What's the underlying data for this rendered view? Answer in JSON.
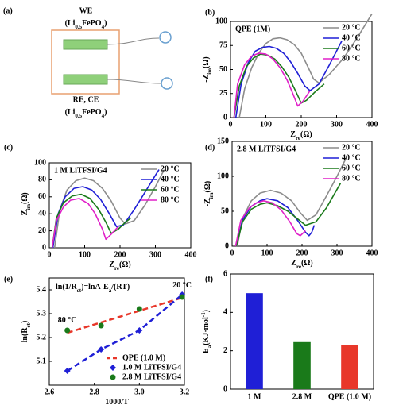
{
  "diagram": {
    "panel_label": "(a)",
    "we": {
      "title": "WE",
      "formula": [
        "(Li",
        {
          "sub": "0.5"
        },
        "FePO",
        {
          "sub": "4"
        },
        ")"
      ]
    },
    "re": {
      "title": "RE, CE",
      "formula": [
        "(Li",
        {
          "sub": "0.5"
        },
        "FePO",
        {
          "sub": "4"
        },
        ")"
      ]
    }
  },
  "chart_data": [
    {
      "type": "line",
      "panel_label": "(b)",
      "inset_label": "QPE (1M)",
      "x_label": [
        "Z",
        {
          "sub": "re"
        },
        "(Ω)"
      ],
      "y_label": [
        "-Z",
        {
          "sub": "im"
        },
        "(Ω)"
      ],
      "xlim": [
        0,
        400
      ],
      "xticks": [
        0,
        100,
        200,
        300,
        400
      ],
      "ylim": [
        0,
        100
      ],
      "yticks": [
        0,
        25,
        50,
        75,
        100
      ],
      "legend": "upper right",
      "series": [
        {
          "name": "20 °C",
          "color": "#8c8c8c",
          "x": [
            25,
            40,
            60,
            80,
            100,
            120,
            140,
            160,
            180,
            200,
            220,
            235,
            250,
            280,
            320,
            360,
            400
          ],
          "values": [
            0,
            30,
            52,
            67,
            77,
            82,
            83,
            81,
            76,
            67,
            52,
            40,
            36,
            45,
            62,
            84,
            108
          ]
        },
        {
          "name": "40 °C",
          "color": "#1f1fd6",
          "x": [
            15,
            30,
            50,
            70,
            90,
            110,
            130,
            150,
            170,
            190,
            210,
            225,
            250,
            280,
            315
          ],
          "values": [
            0,
            35,
            57,
            69,
            73,
            74,
            72,
            67,
            58,
            46,
            33,
            28,
            35,
            55,
            80
          ]
        },
        {
          "name": "60 °C",
          "color": "#1a7a1a",
          "x": [
            10,
            25,
            45,
            65,
            85,
            105,
            125,
            145,
            165,
            185,
            200,
            215,
            240,
            265
          ],
          "values": [
            0,
            33,
            53,
            62,
            66,
            65,
            61,
            53,
            42,
            27,
            15,
            18,
            27,
            35
          ]
        },
        {
          "name": "80 °C",
          "color": "#e020c8",
          "x": [
            10,
            20,
            40,
            60,
            80,
            100,
            120,
            140,
            160,
            175,
            190,
            205,
            225
          ],
          "values": [
            0,
            35,
            55,
            64,
            67,
            66,
            61,
            52,
            39,
            26,
            12,
            17,
            28
          ]
        }
      ]
    },
    {
      "type": "line",
      "panel_label": "(c)",
      "inset_label": "1 M LiTFSI/G4",
      "x_label": [
        "Z",
        {
          "sub": "re"
        },
        "(Ω)"
      ],
      "y_label": [
        "-Z",
        {
          "sub": "im"
        },
        "(Ω)"
      ],
      "xlim": [
        0,
        400
      ],
      "xticks": [
        0,
        100,
        200,
        300,
        400
      ],
      "ylim": [
        0,
        100
      ],
      "yticks": [
        0,
        20,
        40,
        60,
        80,
        100
      ],
      "legend": "upper right",
      "series": [
        {
          "name": "20 °C",
          "color": "#8c8c8c",
          "x": [
            15,
            30,
            50,
            75,
            100,
            125,
            150,
            175,
            200,
            215,
            240,
            270,
            300,
            325
          ],
          "values": [
            0,
            45,
            68,
            79,
            82,
            79,
            70,
            55,
            35,
            28,
            32,
            50,
            72,
            92
          ]
        },
        {
          "name": "40 °C",
          "color": "#1f1fd6",
          "x": [
            10,
            25,
            45,
            70,
            95,
            120,
            145,
            170,
            190,
            210,
            240,
            270,
            295,
            310
          ],
          "values": [
            0,
            40,
            60,
            70,
            72,
            68,
            57,
            40,
            25,
            27,
            45,
            65,
            82,
            92
          ]
        },
        {
          "name": "60 °C",
          "color": "#1a7a1a",
          "x": [
            8,
            20,
            40,
            65,
            90,
            115,
            140,
            160,
            175,
            195,
            215,
            230
          ],
          "values": [
            0,
            35,
            53,
            61,
            63,
            58,
            45,
            30,
            17,
            22,
            30,
            35
          ]
        },
        {
          "name": "80 °C",
          "color": "#e020c8",
          "x": [
            8,
            20,
            40,
            60,
            85,
            110,
            130,
            150,
            160,
            175,
            195
          ],
          "values": [
            0,
            32,
            48,
            56,
            58,
            52,
            40,
            22,
            10,
            16,
            25
          ]
        }
      ]
    },
    {
      "type": "line",
      "panel_label": "(d)",
      "inset_label": "2.8 M LiTFSI/G4",
      "x_label": [
        "Z",
        {
          "sub": "re"
        },
        "(Ω)"
      ],
      "y_label": [
        "-Z",
        {
          "sub": "im"
        },
        "(Ω)"
      ],
      "xlim": [
        0,
        400
      ],
      "xticks": [
        0,
        100,
        200,
        300,
        400
      ],
      "ylim": [
        0,
        150
      ],
      "yticks": [
        0,
        50,
        100,
        150
      ],
      "legend": "upper right",
      "series": [
        {
          "name": "20 °C",
          "color": "#8c8c8c",
          "x": [
            15,
            30,
            55,
            80,
            110,
            140,
            170,
            195,
            215,
            240,
            270,
            300,
            330
          ],
          "values": [
            0,
            40,
            65,
            76,
            80,
            76,
            65,
            48,
            37,
            45,
            72,
            100,
            130
          ]
        },
        {
          "name": "40 °C",
          "color": "#1f1fd6",
          "x": [
            12,
            30,
            55,
            80,
            100,
            130,
            160,
            190,
            210,
            220,
            228,
            235
          ],
          "values": [
            0,
            38,
            57,
            65,
            68,
            65,
            55,
            35,
            20,
            15,
            20,
            30
          ]
        },
        {
          "name": "60 °C",
          "color": "#1a7a1a",
          "x": [
            12,
            30,
            55,
            80,
            100,
            130,
            160,
            185,
            210,
            240,
            270,
            310
          ],
          "values": [
            0,
            35,
            53,
            60,
            62,
            58,
            50,
            40,
            30,
            35,
            55,
            90
          ]
        },
        {
          "name": "80 °C",
          "color": "#e020c8",
          "x": [
            10,
            25,
            50,
            70,
            90,
            115,
            140,
            165,
            185,
            195,
            210
          ],
          "values": [
            0,
            37,
            55,
            62,
            65,
            62,
            52,
            35,
            18,
            15,
            22
          ]
        }
      ]
    },
    {
      "type": "scatter",
      "panel_label": "(e)",
      "x_label": [
        "1000/T"
      ],
      "y_label": [
        "ln(R",
        {
          "sub": "ct"
        },
        ")"
      ],
      "annotations": [
        [
          "ln(1/R",
          {
            "sub": "ct"
          },
          ")=lnA-E",
          {
            "sub": "a"
          },
          "/(RT)"
        ],
        [
          "80 °C"
        ],
        [
          "20 °C"
        ]
      ],
      "xlim": [
        2.6,
        3.2
      ],
      "xticks": [
        2.6,
        2.8,
        {
          "value": 3,
          "label": "3.0"
        },
        3.2
      ],
      "ylim": [
        5.0,
        5.45
      ],
      "yticks": [
        5.1,
        5.2,
        5.3,
        5.4
      ],
      "legend": "lower right",
      "series": [
        {
          "name": "QPE (1.0 M)",
          "color": "#e8372a",
          "marker": "none",
          "line": "dashed",
          "x": [
            2.68,
            3.2
          ],
          "values": [
            5.22,
            5.37
          ]
        },
        {
          "name": "1.0 M LiTFSI/G4",
          "color": "#1f1fd6",
          "marker": "diamond",
          "line": "dashed",
          "x": [
            2.68,
            2.83,
            3.0,
            3.19
          ],
          "values": [
            5.06,
            5.15,
            5.23,
            5.38
          ]
        },
        {
          "name": "2.8 M LiTFSI/G4",
          "color": "#1a7a1a",
          "marker": "circle",
          "line": "none",
          "x": [
            2.68,
            2.83,
            3.0,
            3.19
          ],
          "values": [
            5.23,
            5.25,
            5.32,
            5.37
          ]
        }
      ]
    },
    {
      "type": "bar",
      "panel_label": "(f)",
      "y_label": [
        "E",
        {
          "sub": "a"
        },
        "(KJ·mol",
        {
          "sup": "-1"
        },
        ")"
      ],
      "categories": [
        "1 M",
        "2.8 M",
        "QPE (1.0 M)"
      ],
      "values": [
        5.0,
        2.45,
        2.3
      ],
      "colors": [
        "#1f1fd6",
        "#1a7a1a",
        "#e8372a"
      ],
      "ylim": [
        0,
        6
      ],
      "yticks": [
        0,
        2,
        4,
        6
      ]
    }
  ]
}
